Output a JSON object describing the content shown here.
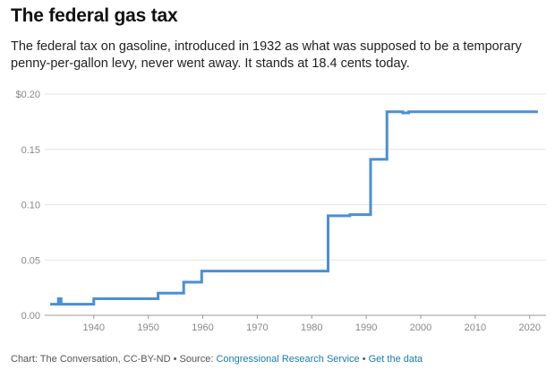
{
  "header": {
    "title": "The federal gas tax",
    "subtitle": "The federal tax on gasoline, introduced in 1932 as what was supposed to be a temporary penny-per-gallon levy, never went away. It stands at 18.4 cents today."
  },
  "footer": {
    "credit": "Chart: The Conversation, CC-BY-ND",
    "separator": " • ",
    "source_prefix": "Source: ",
    "source_link": "Congressional Research Service",
    "data_link": "Get the data"
  },
  "chart_data": {
    "type": "line",
    "title": "The federal gas tax",
    "subtitle": "The federal tax on gasoline, introduced in 1932 as what was supposed to be a temporary penny-per-gallon levy, never went away. It stands at 18.4 cents today.",
    "xlabel": "",
    "ylabel": "",
    "xlim": [
      1931,
      2023
    ],
    "ylim": [
      0,
      0.2
    ],
    "x_ticks": [
      1940,
      1950,
      1960,
      1970,
      1980,
      1990,
      2000,
      2010,
      2020
    ],
    "y_ticks": [
      {
        "value": 0.0,
        "label": "0.00"
      },
      {
        "value": 0.05,
        "label": "0.05"
      },
      {
        "value": 0.1,
        "label": "0.10"
      },
      {
        "value": 0.15,
        "label": "0.15"
      },
      {
        "value": 0.2,
        "label": "$0.20"
      }
    ],
    "grid": "horizontal",
    "color": "#4a8fd6",
    "step": true,
    "points": [
      [
        1932,
        0.01
      ],
      [
        1933.5,
        0.015
      ],
      [
        1934,
        0.01
      ],
      [
        1940,
        0.015
      ],
      [
        1951.8,
        0.02
      ],
      [
        1956.5,
        0.03
      ],
      [
        1959.8,
        0.04
      ],
      [
        1983,
        0.09
      ],
      [
        1987,
        0.091
      ],
      [
        1990.8,
        0.141
      ],
      [
        1993.8,
        0.184
      ],
      [
        1996.7,
        0.183
      ],
      [
        1997.8,
        0.184
      ],
      [
        2021.5,
        0.184
      ]
    ]
  }
}
